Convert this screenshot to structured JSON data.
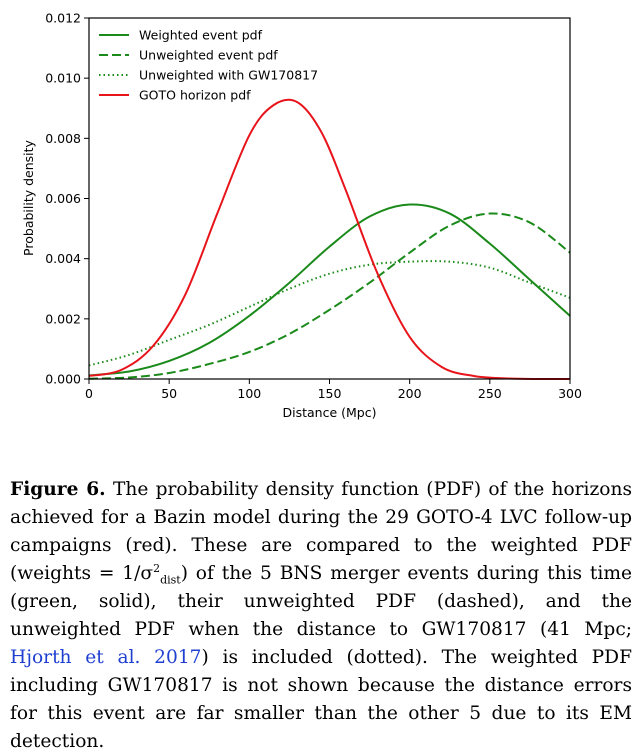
{
  "chart_data": {
    "type": "line",
    "xlabel": "Distance (Mpc)",
    "ylabel": "Probability density",
    "xlim": [
      0,
      300
    ],
    "ylim": [
      0,
      0.012
    ],
    "x_ticks": [
      "0",
      "50",
      "100",
      "150",
      "200",
      "250",
      "300"
    ],
    "y_ticks": [
      "0.000",
      "0.002",
      "0.004",
      "0.006",
      "0.008",
      "0.010",
      "0.012"
    ],
    "grid": false,
    "legend_position": "top-left",
    "colors": {
      "green": "#1a8a1a",
      "red": "#e8141b"
    },
    "series": [
      {
        "name": "Weighted event pdf",
        "color": "#1a8a1a",
        "style": "solid",
        "x": [
          0,
          25,
          50,
          75,
          100,
          125,
          150,
          175,
          200,
          225,
          250,
          275,
          300
        ],
        "y": [
          0.00012,
          0.00025,
          0.0006,
          0.0012,
          0.0021,
          0.0032,
          0.0044,
          0.0054,
          0.0058,
          0.0055,
          0.0045,
          0.0033,
          0.0021
        ]
      },
      {
        "name": "Unweighted event pdf",
        "color": "#1a8a1a",
        "style": "dashed",
        "x": [
          0,
          25,
          50,
          75,
          100,
          125,
          150,
          175,
          200,
          225,
          250,
          275,
          300
        ],
        "y": [
          1e-05,
          5e-05,
          0.0002,
          0.0005,
          0.0009,
          0.0015,
          0.0023,
          0.0032,
          0.0042,
          0.0051,
          0.0055,
          0.0052,
          0.0042
        ]
      },
      {
        "name": "Unweighted with GW170817",
        "color": "#1a8a1a",
        "style": "dotted",
        "x": [
          0,
          25,
          50,
          75,
          100,
          125,
          150,
          175,
          200,
          225,
          250,
          275,
          300
        ],
        "y": [
          0.00045,
          0.0008,
          0.0013,
          0.0018,
          0.0024,
          0.003,
          0.0035,
          0.0038,
          0.0039,
          0.0039,
          0.0037,
          0.0032,
          0.0027
        ]
      },
      {
        "name": "GOTO horizon pdf",
        "color": "#e8141b",
        "style": "solid",
        "x": [
          0,
          20,
          40,
          60,
          80,
          100,
          115,
          130,
          145,
          160,
          180,
          200,
          220,
          240,
          260,
          280,
          300
        ],
        "y": [
          0.0001,
          0.0003,
          0.0011,
          0.0028,
          0.0055,
          0.0081,
          0.0091,
          0.0092,
          0.0082,
          0.0063,
          0.0035,
          0.0014,
          0.0004,
          0.0001,
          2e-05,
          0.0,
          0.0
        ]
      }
    ]
  },
  "caption": {
    "label": "Figure 6.",
    "text_1": " The probability density function (PDF) of the horizons achieved for a Bazin model during the 29 GOTO-4 LVC follow-up campaigns (red). These are compared to the weighted PDF (weights = 1/σ",
    "sup": "2",
    "sub": "dist",
    "text_2": ") of the 5 BNS merger events during this time (green, solid), their unweighted PDF (dashed), and the unweighted PDF when the distance to GW170817 (41 Mpc; ",
    "citation": "Hjorth et al. 2017",
    "text_3": ") is included (dotted). The weighted PDF including GW170817 is not shown because the distance errors for this event are far smaller than the other 5 due to its EM detection."
  }
}
